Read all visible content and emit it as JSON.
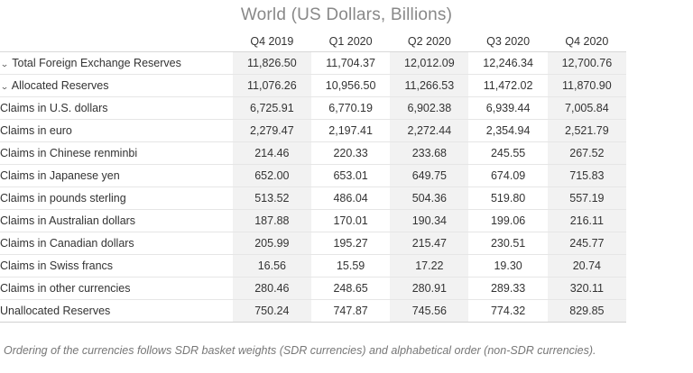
{
  "title": "World (US Dollars, Billions)",
  "columns": [
    "Q4 2019",
    "Q1 2020",
    "Q2 2020",
    "Q3 2020",
    "Q4 2020"
  ],
  "rows": [
    {
      "label": "Total Foreign Exchange Reserves",
      "values": [
        "11,826.50",
        "11,704.37",
        "12,012.09",
        "12,246.34",
        "12,700.76"
      ]
    },
    {
      "label": "Allocated Reserves",
      "values": [
        "11,076.26",
        "10,956.50",
        "11,266.53",
        "11,472.02",
        "11,870.90"
      ]
    },
    {
      "label": "Claims in U.S. dollars",
      "values": [
        "6,725.91",
        "6,770.19",
        "6,902.38",
        "6,939.44",
        "7,005.84"
      ]
    },
    {
      "label": "Claims in euro",
      "values": [
        "2,279.47",
        "2,197.41",
        "2,272.44",
        "2,354.94",
        "2,521.79"
      ]
    },
    {
      "label": "Claims in Chinese renminbi",
      "values": [
        "214.46",
        "220.33",
        "233.68",
        "245.55",
        "267.52"
      ]
    },
    {
      "label": "Claims in Japanese yen",
      "values": [
        "652.00",
        "653.01",
        "649.75",
        "674.09",
        "715.83"
      ]
    },
    {
      "label": "Claims in pounds sterling",
      "values": [
        "513.52",
        "486.04",
        "504.36",
        "519.80",
        "557.19"
      ]
    },
    {
      "label": "Claims in Australian dollars",
      "values": [
        "187.88",
        "170.01",
        "190.34",
        "199.06",
        "216.11"
      ]
    },
    {
      "label": "Claims in Canadian dollars",
      "values": [
        "205.99",
        "195.27",
        "215.47",
        "230.51",
        "245.77"
      ]
    },
    {
      "label": "Claims in Swiss francs",
      "values": [
        "16.56",
        "15.59",
        "17.22",
        "19.30",
        "20.74"
      ]
    },
    {
      "label": "Claims in other currencies",
      "values": [
        "280.46",
        "248.65",
        "280.91",
        "289.33",
        "320.11"
      ]
    },
    {
      "label": "Unallocated Reserves",
      "values": [
        "750.24",
        "747.87",
        "745.56",
        "774.32",
        "829.85"
      ]
    }
  ],
  "footnote": "Ordering of the currencies follows SDR basket weights (SDR currencies) and alphabetical order (non-SDR currencies)."
}
